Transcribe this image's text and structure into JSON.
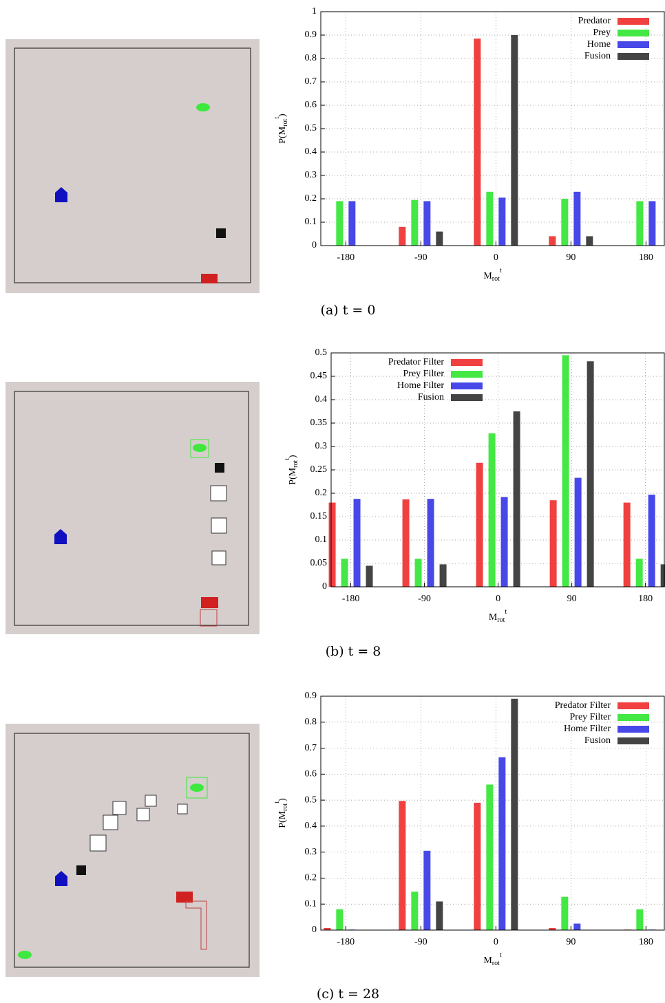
{
  "chart_data": [
    {
      "type": "bar",
      "categories": [
        -180,
        -90,
        0,
        90,
        180
      ],
      "xlim": [
        -210,
        202
      ],
      "ylim": [
        0,
        1
      ],
      "yticks": [
        0,
        0.1,
        0.2,
        0.3,
        0.4,
        0.5,
        0.6,
        0.7,
        0.8,
        0.9,
        1
      ],
      "xlabel": {
        "base": "M",
        "sub": "rot",
        "sup": "t"
      },
      "ylabel": {
        "prefix": "P(",
        "base": "M",
        "sub": "rot",
        "sup": "t",
        "suffix": ")"
      },
      "grid": true,
      "legend": "upper right",
      "series": [
        {
          "name": "Predator",
          "color": "#f04040",
          "values": [
            0,
            0.08,
            0.885,
            0.04,
            0
          ]
        },
        {
          "name": "Prey",
          "color": "#44e844",
          "values": [
            0.19,
            0.195,
            0.23,
            0.2,
            0.19
          ]
        },
        {
          "name": "Home",
          "color": "#4848e8",
          "values": [
            0.19,
            0.19,
            0.205,
            0.23,
            0.19
          ]
        },
        {
          "name": "Fusion",
          "color": "#444444",
          "values": [
            0,
            0.06,
            0.9,
            0.04,
            0
          ]
        }
      ],
      "caption": "(a)  t = 0"
    },
    {
      "type": "bar",
      "categories": [
        -180,
        -90,
        0,
        90,
        180
      ],
      "xlim": [
        -204,
        203
      ],
      "ylim": [
        0,
        0.5
      ],
      "yticks": [
        0,
        0.05,
        0.1,
        0.15,
        0.2,
        0.25,
        0.3,
        0.35,
        0.4,
        0.45,
        0.5
      ],
      "xlabel": {
        "base": "M",
        "sub": "rot",
        "sup": "t"
      },
      "ylabel": {
        "prefix": "P(",
        "base": "M",
        "sub": "rot",
        "sup": "t",
        "suffix": ")"
      },
      "grid": true,
      "legend": "upper left",
      "series": [
        {
          "name": "Predator Filter",
          "color": "#f04040",
          "values": [
            0.18,
            0.187,
            0.265,
            0.185,
            0.18
          ]
        },
        {
          "name": "Prey Filter",
          "color": "#44e844",
          "values": [
            0.06,
            0.06,
            0.328,
            0.495,
            0.06
          ]
        },
        {
          "name": "Home Filter",
          "color": "#4848e8",
          "values": [
            0.188,
            0.188,
            0.192,
            0.233,
            0.197
          ]
        },
        {
          "name": "Fusion",
          "color": "#444444",
          "values": [
            0.045,
            0.048,
            0.375,
            0.482,
            0.048
          ]
        }
      ],
      "caption": "(b)  t = 8"
    },
    {
      "type": "bar",
      "categories": [
        -180,
        -90,
        0,
        90,
        180
      ],
      "xlim": [
        -210,
        202
      ],
      "ylim": [
        0,
        0.9
      ],
      "yticks": [
        0,
        0.1,
        0.2,
        0.3,
        0.4,
        0.5,
        0.6,
        0.7,
        0.8,
        0.9
      ],
      "xlabel": {
        "base": "M",
        "sub": "rot",
        "sup": "t"
      },
      "ylabel": {
        "prefix": "P(",
        "base": "M",
        "sub": "rot",
        "sup": "t",
        "suffix": ")"
      },
      "grid": true,
      "legend": "upper right",
      "series": [
        {
          "name": "Predator Filter",
          "color": "#f04040",
          "values": [
            0.008,
            0.497,
            0.49,
            0.008,
            0.002
          ]
        },
        {
          "name": "Prey Filter",
          "color": "#44e844",
          "values": [
            0.08,
            0.148,
            0.56,
            0.128,
            0.08
          ]
        },
        {
          "name": "Home Filter",
          "color": "#4848e8",
          "values": [
            0.002,
            0.305,
            0.665,
            0.025,
            0.002
          ]
        },
        {
          "name": "Fusion",
          "color": "#444444",
          "values": [
            0,
            0.11,
            0.89,
            0,
            0
          ]
        }
      ],
      "caption": "(c)  t = 28"
    }
  ]
}
